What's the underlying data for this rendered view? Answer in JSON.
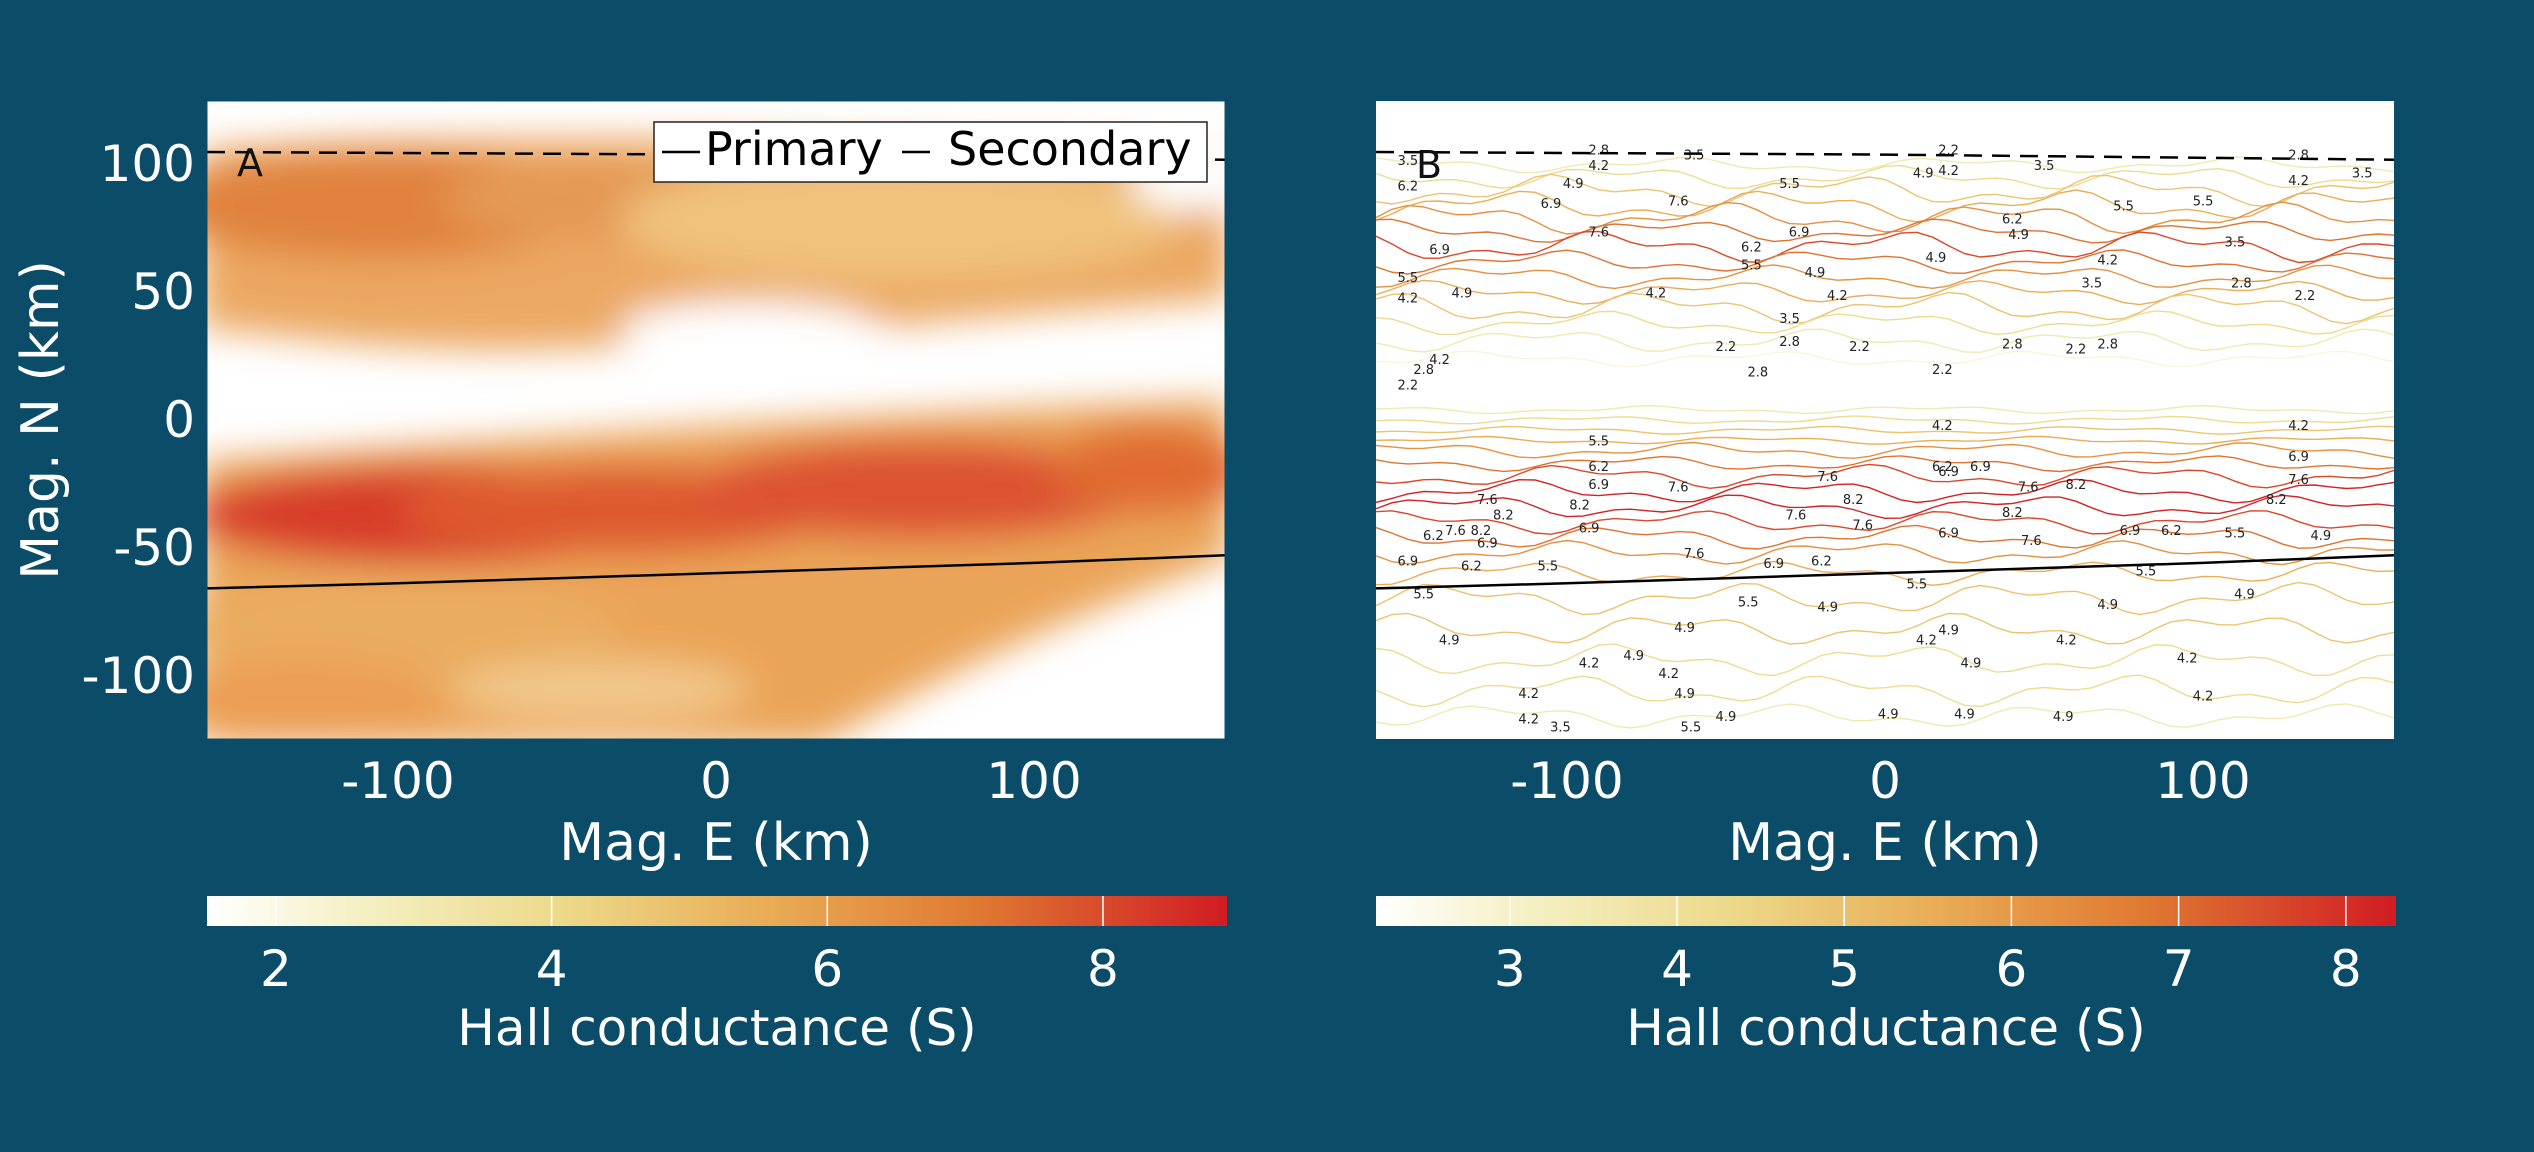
{
  "chart_data": [
    {
      "type": "heatmap",
      "panel_label": "A",
      "xlabel": "Mag. E (km)",
      "ylabel": "Mag. N (km)",
      "xlim": [
        -160,
        160
      ],
      "ylim": [
        -125,
        125
      ],
      "xticks": [
        -100,
        0,
        100
      ],
      "yticks": [
        100,
        50,
        0,
        -50,
        -100
      ],
      "legend": {
        "placement": "top-right",
        "entries": [
          {
            "name": "Primary",
            "style": "solid"
          },
          {
            "name": "Secondary",
            "style": "dashed"
          }
        ]
      },
      "lines": [
        {
          "name": "Primary",
          "style": "solid",
          "x": [
            -160,
            -100,
            -50,
            0,
            50,
            100,
            160
          ],
          "y": [
            -66,
            -64,
            -62,
            -60,
            -58,
            -56,
            -53
          ]
        },
        {
          "name": "Secondary",
          "style": "dashed",
          "x": [
            -160,
            0,
            160
          ],
          "y": [
            105,
            104,
            102
          ]
        }
      ],
      "field": [
        {
          "e": -110,
          "n": 76,
          "value": 6.8
        },
        {
          "e": -55,
          "n": 80,
          "value": 6.2
        },
        {
          "e": 20,
          "n": 72,
          "value": 5.0
        },
        {
          "e": 100,
          "n": 72,
          "value": 4.6
        },
        {
          "e": -120,
          "n": 45,
          "value": 4.8
        },
        {
          "e": 0,
          "n": 45,
          "value": 4.0
        },
        {
          "e": 100,
          "n": 40,
          "value": 3.8
        },
        {
          "e": -110,
          "n": -38,
          "value": 7.6
        },
        {
          "e": -60,
          "n": -40,
          "value": 8.4
        },
        {
          "e": 10,
          "n": -38,
          "value": 7.5
        },
        {
          "e": 70,
          "n": -36,
          "value": 7.8
        },
        {
          "e": 140,
          "n": -30,
          "value": 7.2
        },
        {
          "e": -100,
          "n": -80,
          "value": 5.2
        },
        {
          "e": 0,
          "n": -85,
          "value": 4.8
        },
        {
          "e": -60,
          "n": -110,
          "value": 4.5
        }
      ],
      "colorbar": {
        "label": "Hall conductance (S)",
        "range": [
          1.5,
          8.9
        ],
        "ticks": [
          2,
          4,
          6,
          8
        ]
      }
    },
    {
      "type": "contour",
      "panel_label": "B",
      "xlabel": "Mag. E (km)",
      "xlim": [
        -160,
        160
      ],
      "ylim": [
        -125,
        125
      ],
      "xticks": [
        -100,
        0,
        100
      ],
      "contour_levels": [
        2.2,
        2.8,
        3.5,
        4.2,
        4.9,
        5.5,
        6.2,
        6.9,
        7.6,
        8.2
      ],
      "lines": [
        {
          "name": "Primary",
          "style": "solid",
          "x": [
            -160,
            -100,
            -50,
            0,
            50,
            100,
            160
          ],
          "y": [
            -66,
            -64,
            -62,
            -60,
            -58,
            -56,
            -53
          ]
        },
        {
          "name": "Secondary",
          "style": "dashed",
          "x": [
            -160,
            0,
            160
          ],
          "y": [
            105,
            104,
            102
          ]
        }
      ],
      "contour_labels": [
        {
          "e": -150,
          "n": 100,
          "text": "3.5"
        },
        {
          "e": -90,
          "n": 104,
          "text": "2.8"
        },
        {
          "e": -90,
          "n": 98,
          "text": "4.2"
        },
        {
          "e": -60,
          "n": 102,
          "text": "3.5"
        },
        {
          "e": 20,
          "n": 104,
          "text": "2.2"
        },
        {
          "e": 20,
          "n": 96,
          "text": "4.2"
        },
        {
          "e": 50,
          "n": 98,
          "text": "3.5"
        },
        {
          "e": 130,
          "n": 102,
          "text": "2.8"
        },
        {
          "e": 150,
          "n": 95,
          "text": "3.5"
        },
        {
          "e": -150,
          "n": 90,
          "text": "6.2"
        },
        {
          "e": -98,
          "n": 91,
          "text": "4.9"
        },
        {
          "e": -30,
          "n": 91,
          "text": "5.5"
        },
        {
          "e": 12,
          "n": 95,
          "text": "4.9"
        },
        {
          "e": 130,
          "n": 92,
          "text": "4.2"
        },
        {
          "e": -105,
          "n": 83,
          "text": "6.9"
        },
        {
          "e": -65,
          "n": 84,
          "text": "7.6"
        },
        {
          "e": 40,
          "n": 77,
          "text": "6.2"
        },
        {
          "e": 100,
          "n": 84,
          "text": "5.5"
        },
        {
          "e": -140,
          "n": 65,
          "text": "6.9"
        },
        {
          "e": -90,
          "n": 72,
          "text": "7.6"
        },
        {
          "e": -42,
          "n": 66,
          "text": "6.2"
        },
        {
          "e": -27,
          "n": 72,
          "text": "6.9"
        },
        {
          "e": 42,
          "n": 71,
          "text": "4.9"
        },
        {
          "e": 75,
          "n": 82,
          "text": "5.5"
        },
        {
          "e": -150,
          "n": 54,
          "text": "5.5"
        },
        {
          "e": -42,
          "n": 59,
          "text": "5.5"
        },
        {
          "e": -22,
          "n": 56,
          "text": "4.9"
        },
        {
          "e": 16,
          "n": 62,
          "text": "4.9"
        },
        {
          "e": 70,
          "n": 61,
          "text": "4.2"
        },
        {
          "e": 110,
          "n": 68,
          "text": "3.5"
        },
        {
          "e": -150,
          "n": 46,
          "text": "4.2"
        },
        {
          "e": -133,
          "n": 48,
          "text": "4.9"
        },
        {
          "e": -72,
          "n": 48,
          "text": "4.2"
        },
        {
          "e": -15,
          "n": 47,
          "text": "4.2"
        },
        {
          "e": 65,
          "n": 52,
          "text": "3.5"
        },
        {
          "e": 112,
          "n": 52,
          "text": "2.8"
        },
        {
          "e": 132,
          "n": 47,
          "text": "2.2"
        },
        {
          "e": -30,
          "n": 38,
          "text": "3.5"
        },
        {
          "e": -50,
          "n": 27,
          "text": "2.2"
        },
        {
          "e": -30,
          "n": 29,
          "text": "2.8"
        },
        {
          "e": -8,
          "n": 27,
          "text": "2.2"
        },
        {
          "e": 40,
          "n": 28,
          "text": "2.8"
        },
        {
          "e": 60,
          "n": 26,
          "text": "2.2"
        },
        {
          "e": 70,
          "n": 28,
          "text": "2.8"
        },
        {
          "e": -140,
          "n": 22,
          "text": "4.2"
        },
        {
          "e": -145,
          "n": 18,
          "text": "2.8"
        },
        {
          "e": -40,
          "n": 17,
          "text": "2.8"
        },
        {
          "e": 18,
          "n": 18,
          "text": "2.2"
        },
        {
          "e": -150,
          "n": 12,
          "text": "2.2"
        },
        {
          "e": -90,
          "n": -10,
          "text": "5.5"
        },
        {
          "e": 18,
          "n": -4,
          "text": "4.2"
        },
        {
          "e": 130,
          "n": -4,
          "text": "4.2"
        },
        {
          "e": -90,
          "n": -20,
          "text": "6.2"
        },
        {
          "e": 18,
          "n": -20,
          "text": "6.2"
        },
        {
          "e": 130,
          "n": -16,
          "text": "6.9"
        },
        {
          "e": -90,
          "n": -27,
          "text": "6.9"
        },
        {
          "e": -65,
          "n": -28,
          "text": "7.6"
        },
        {
          "e": 20,
          "n": -22,
          "text": "6.9"
        },
        {
          "e": 30,
          "n": -20,
          "text": "6.9"
        },
        {
          "e": -18,
          "n": -24,
          "text": "7.6"
        },
        {
          "e": 45,
          "n": -28,
          "text": "7.6"
        },
        {
          "e": 60,
          "n": -27,
          "text": "8.2"
        },
        {
          "e": 130,
          "n": -25,
          "text": "7.6"
        },
        {
          "e": -125,
          "n": -33,
          "text": "7.6"
        },
        {
          "e": -120,
          "n": -39,
          "text": "8.2"
        },
        {
          "e": -96,
          "n": -35,
          "text": "8.2"
        },
        {
          "e": -93,
          "n": -44,
          "text": "6.9"
        },
        {
          "e": -10,
          "n": -33,
          "text": "8.2"
        },
        {
          "e": -28,
          "n": -39,
          "text": "7.6"
        },
        {
          "e": -7,
          "n": -43,
          "text": "7.6"
        },
        {
          "e": 40,
          "n": -38,
          "text": "8.2"
        },
        {
          "e": 123,
          "n": -33,
          "text": "8.2"
        },
        {
          "e": -142,
          "n": -47,
          "text": "6.2"
        },
        {
          "e": -135,
          "n": -45,
          "text": "7.6"
        },
        {
          "e": -127,
          "n": -45,
          "text": "8.2"
        },
        {
          "e": -125,
          "n": -50,
          "text": "6.9"
        },
        {
          "e": 20,
          "n": -46,
          "text": "6.9"
        },
        {
          "e": 46,
          "n": -49,
          "text": "7.6"
        },
        {
          "e": 77,
          "n": -45,
          "text": "6.9"
        },
        {
          "e": 90,
          "n": -45,
          "text": "6.2"
        },
        {
          "e": 110,
          "n": -46,
          "text": "5.5"
        },
        {
          "e": 137,
          "n": -47,
          "text": "4.9"
        },
        {
          "e": -60,
          "n": -54,
          "text": "7.6"
        },
        {
          "e": -150,
          "n": -57,
          "text": "6.9"
        },
        {
          "e": -130,
          "n": -59,
          "text": "6.2"
        },
        {
          "e": -106,
          "n": -59,
          "text": "5.5"
        },
        {
          "e": -35,
          "n": -58,
          "text": "6.9"
        },
        {
          "e": -20,
          "n": -57,
          "text": "6.2"
        },
        {
          "e": 82,
          "n": -61,
          "text": "5.5"
        },
        {
          "e": -145,
          "n": -70,
          "text": "5.5"
        },
        {
          "e": -43,
          "n": -73,
          "text": "5.5"
        },
        {
          "e": 10,
          "n": -66,
          "text": "5.5"
        },
        {
          "e": 113,
          "n": -70,
          "text": "4.9"
        },
        {
          "e": -18,
          "n": -75,
          "text": "4.9"
        },
        {
          "e": 70,
          "n": -74,
          "text": "4.9"
        },
        {
          "e": -63,
          "n": -83,
          "text": "4.9"
        },
        {
          "e": 20,
          "n": -84,
          "text": "4.9"
        },
        {
          "e": -137,
          "n": -88,
          "text": "4.9"
        },
        {
          "e": 13,
          "n": -88,
          "text": "4.2"
        },
        {
          "e": 57,
          "n": -88,
          "text": "4.2"
        },
        {
          "e": -79,
          "n": -94,
          "text": "4.9"
        },
        {
          "e": -93,
          "n": -97,
          "text": "4.2"
        },
        {
          "e": 27,
          "n": -97,
          "text": "4.9"
        },
        {
          "e": 95,
          "n": -95,
          "text": "4.2"
        },
        {
          "e": -68,
          "n": -101,
          "text": "4.2"
        },
        {
          "e": -63,
          "n": -109,
          "text": "4.9"
        },
        {
          "e": 100,
          "n": -110,
          "text": "4.2"
        },
        {
          "e": -112,
          "n": -109,
          "text": "4.2"
        },
        {
          "e": -50,
          "n": -118,
          "text": "4.9"
        },
        {
          "e": 1,
          "n": -117,
          "text": "4.9"
        },
        {
          "e": 25,
          "n": -117,
          "text": "4.9"
        },
        {
          "e": 56,
          "n": -118,
          "text": "4.9"
        },
        {
          "e": -112,
          "n": -119,
          "text": "4.2"
        },
        {
          "e": -102,
          "n": -122,
          "text": "3.5"
        },
        {
          "e": -61,
          "n": -122,
          "text": "5.5"
        }
      ],
      "colorbar": {
        "label": "Hall conductance (S)",
        "range": [
          2.2,
          8.3
        ],
        "ticks": [
          3,
          4,
          5,
          6,
          7,
          8
        ]
      }
    }
  ]
}
